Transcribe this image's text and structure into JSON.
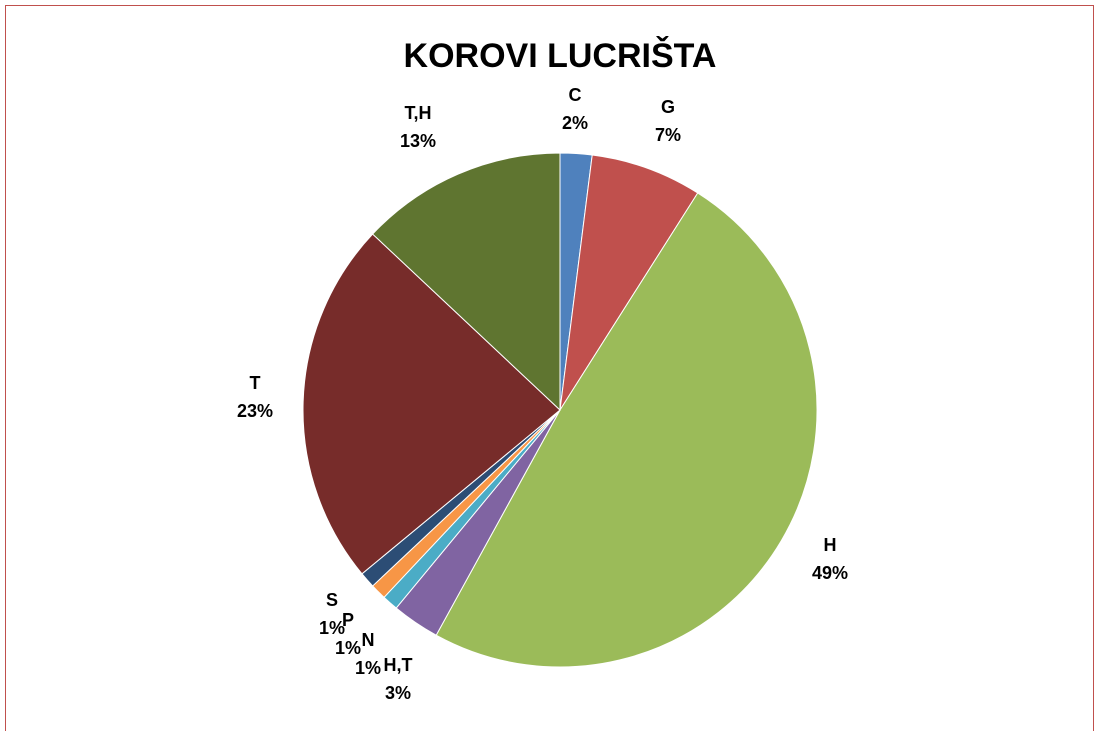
{
  "chart_data": {
    "type": "pie",
    "title": "KOROVI LUCRIŠTA",
    "categories": [
      "C",
      "G",
      "H",
      "H,T",
      "N",
      "P",
      "S",
      "T",
      "T,H"
    ],
    "values": [
      2,
      7,
      49,
      3,
      1,
      1,
      1,
      23,
      13
    ],
    "value_labels": [
      "2%",
      "7%",
      "49%",
      "3%",
      "1%",
      "1%",
      "1%",
      "23%",
      "13%"
    ],
    "colors": [
      "#4f81bd",
      "#c0504d",
      "#9bbb59",
      "#8064a2",
      "#4bacc6",
      "#f79646",
      "#2c4d75",
      "#772c2a",
      "#5f7530"
    ]
  }
}
